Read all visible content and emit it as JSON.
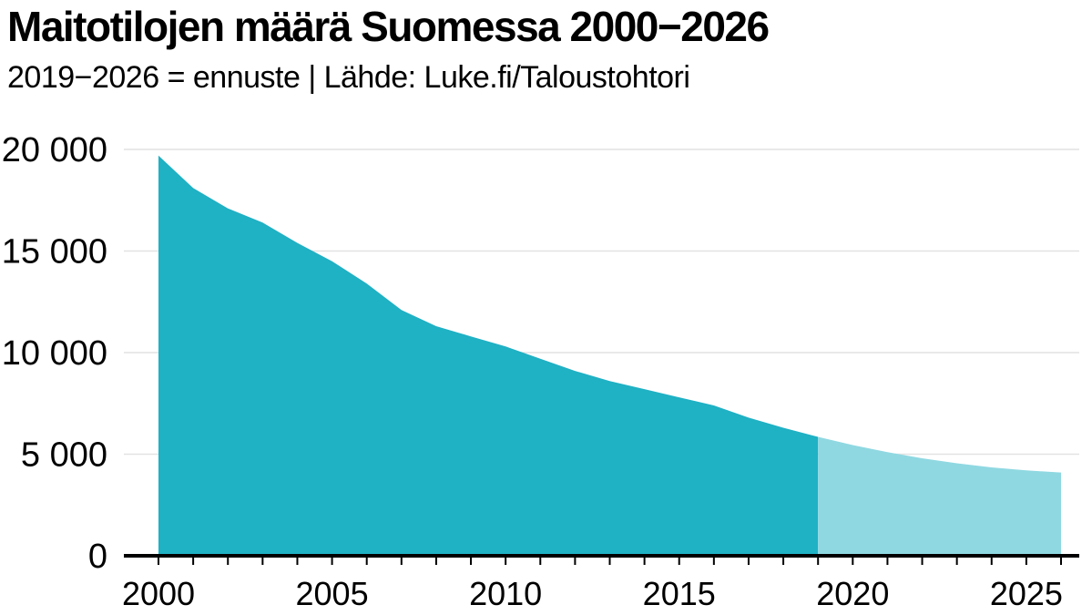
{
  "header": {
    "title": "Maitotilojen määrä Suomessa 2000−2026",
    "subtitle": "2019−2026 = ennuste | Lähde: Luke.fi/Taloustohtori"
  },
  "colors": {
    "actual": "#1fb1c4",
    "forecast": "#8fd8e2",
    "grid": "#e2e2e2",
    "axis": "#000000"
  },
  "chart_data": {
    "type": "area",
    "title": "Maitotilojen määrä Suomessa 2000−2026",
    "subtitle": "2019−2026 = ennuste | Lähde: Luke.fi/Taloustohtori",
    "xlabel": "",
    "ylabel": "",
    "xlim": [
      2000,
      2026
    ],
    "ylim": [
      0,
      20000
    ],
    "grid": true,
    "x_ticks": [
      2000,
      2005,
      2010,
      2015,
      2020,
      2025
    ],
    "y_ticks": [
      {
        "value": 0,
        "label": "0"
      },
      {
        "value": 5000,
        "label": "5 000"
      },
      {
        "value": 10000,
        "label": "10 000"
      },
      {
        "value": 15000,
        "label": "15 000"
      },
      {
        "value": 20000,
        "label": "20 000"
      }
    ],
    "forecast_start": 2019,
    "x": [
      2000,
      2001,
      2002,
      2003,
      2004,
      2005,
      2006,
      2007,
      2008,
      2009,
      2010,
      2011,
      2012,
      2013,
      2014,
      2015,
      2016,
      2017,
      2018,
      2019,
      2020,
      2021,
      2022,
      2023,
      2024,
      2025,
      2026
    ],
    "series": [
      {
        "values": [
          19700,
          18100,
          17100,
          16400,
          15400,
          14500,
          13400,
          12100,
          11300,
          10800,
          10300,
          9700,
          9100,
          8600,
          8200,
          7800,
          7400,
          6800,
          6300,
          5850,
          5450,
          5100,
          4800,
          4550,
          4350,
          4200,
          4100
        ]
      }
    ]
  }
}
